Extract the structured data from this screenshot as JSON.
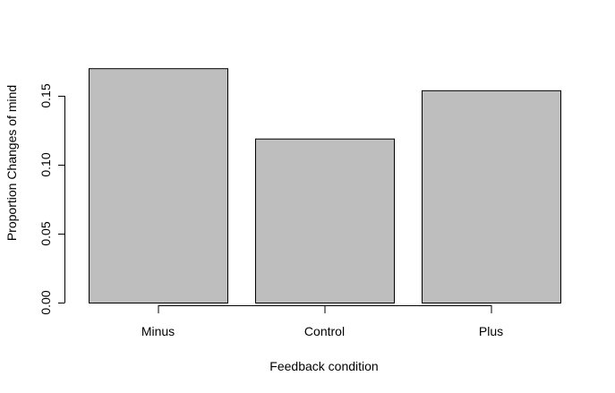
{
  "chart_data": {
    "type": "bar",
    "title": "",
    "categories": [
      "Minus",
      "Control",
      "Plus"
    ],
    "values": [
      0.17,
      0.119,
      0.154
    ],
    "xlabel": "Feedback condition",
    "ylabel": "Proportion Changes of mind",
    "ylim": [
      0,
      0.17
    ],
    "yticks": [
      0.0,
      0.05,
      0.1,
      0.15
    ],
    "ytick_labels": [
      "0.00",
      "0.05",
      "0.10",
      "0.15"
    ],
    "bar_color": "#bebebe",
    "grid": false,
    "legend": "none"
  }
}
